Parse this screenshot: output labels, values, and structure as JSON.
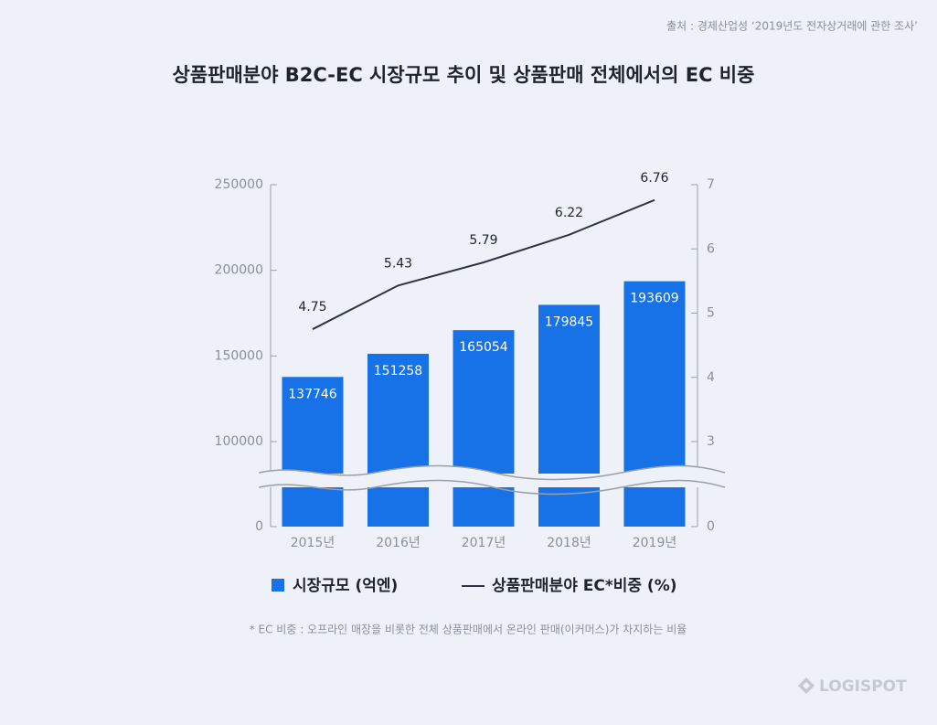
{
  "source": "출처 : 경제산업성 ‘2019년도 전자상거래에 관한 조사’",
  "footnote": "* EC 비중 : 오프라인 매장을 비롯한 전체 상품판매에서 온라인 판매(이커머스)가 차지하는 비율",
  "logo": "LOGISPOT",
  "chart_data": {
    "type": "combo",
    "title": "상품판매분야 B2C-EC 시장규모 추이 및 상품판매 전체에서의 EC 비중",
    "categories": [
      "2015년",
      "2016년",
      "2017년",
      "2018년",
      "2019년"
    ],
    "series": [
      {
        "name": "시장규모 (억엔)",
        "type": "bar",
        "color": "#1672e6",
        "values": [
          137746,
          151258,
          165054,
          179845,
          193609
        ]
      },
      {
        "name": "상품판매분야 EC*비중 (%)",
        "type": "line",
        "axis": "y2",
        "color": "#2f3440",
        "values": [
          4.75,
          5.43,
          5.79,
          6.22,
          6.76
        ]
      }
    ],
    "ylim": [
      0,
      250000
    ],
    "yticks": [
      0,
      100000,
      150000,
      200000,
      250000
    ],
    "y2lim": [
      0,
      7
    ],
    "y2ticks": [
      0,
      3,
      4,
      5,
      6,
      7
    ],
    "axis_break": true
  }
}
